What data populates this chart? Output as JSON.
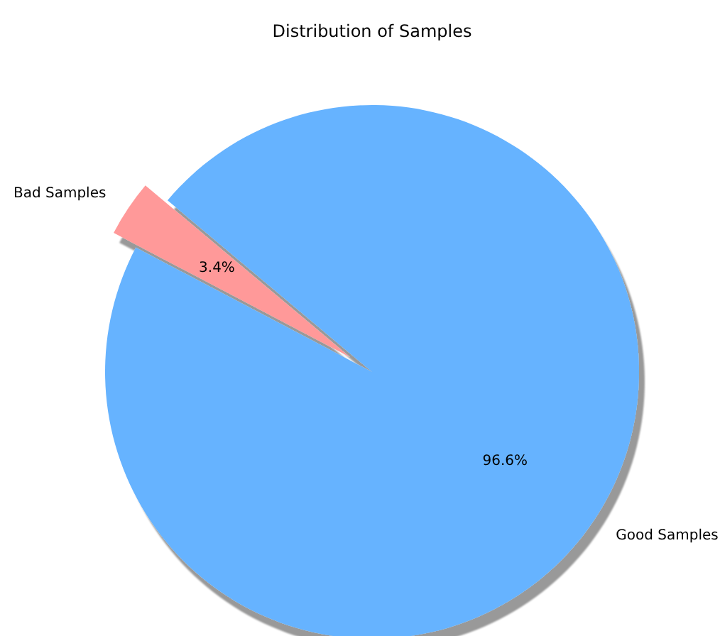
{
  "chart_data": {
    "type": "pie",
    "title": "Distribution of Samples",
    "categories": [
      "Bad Samples",
      "Good Samples"
    ],
    "values": [
      3.4,
      96.6
    ],
    "colors": [
      "#ff9999",
      "#66b3ff"
    ],
    "value_labels": [
      "3.4%",
      "96.6%"
    ]
  }
}
